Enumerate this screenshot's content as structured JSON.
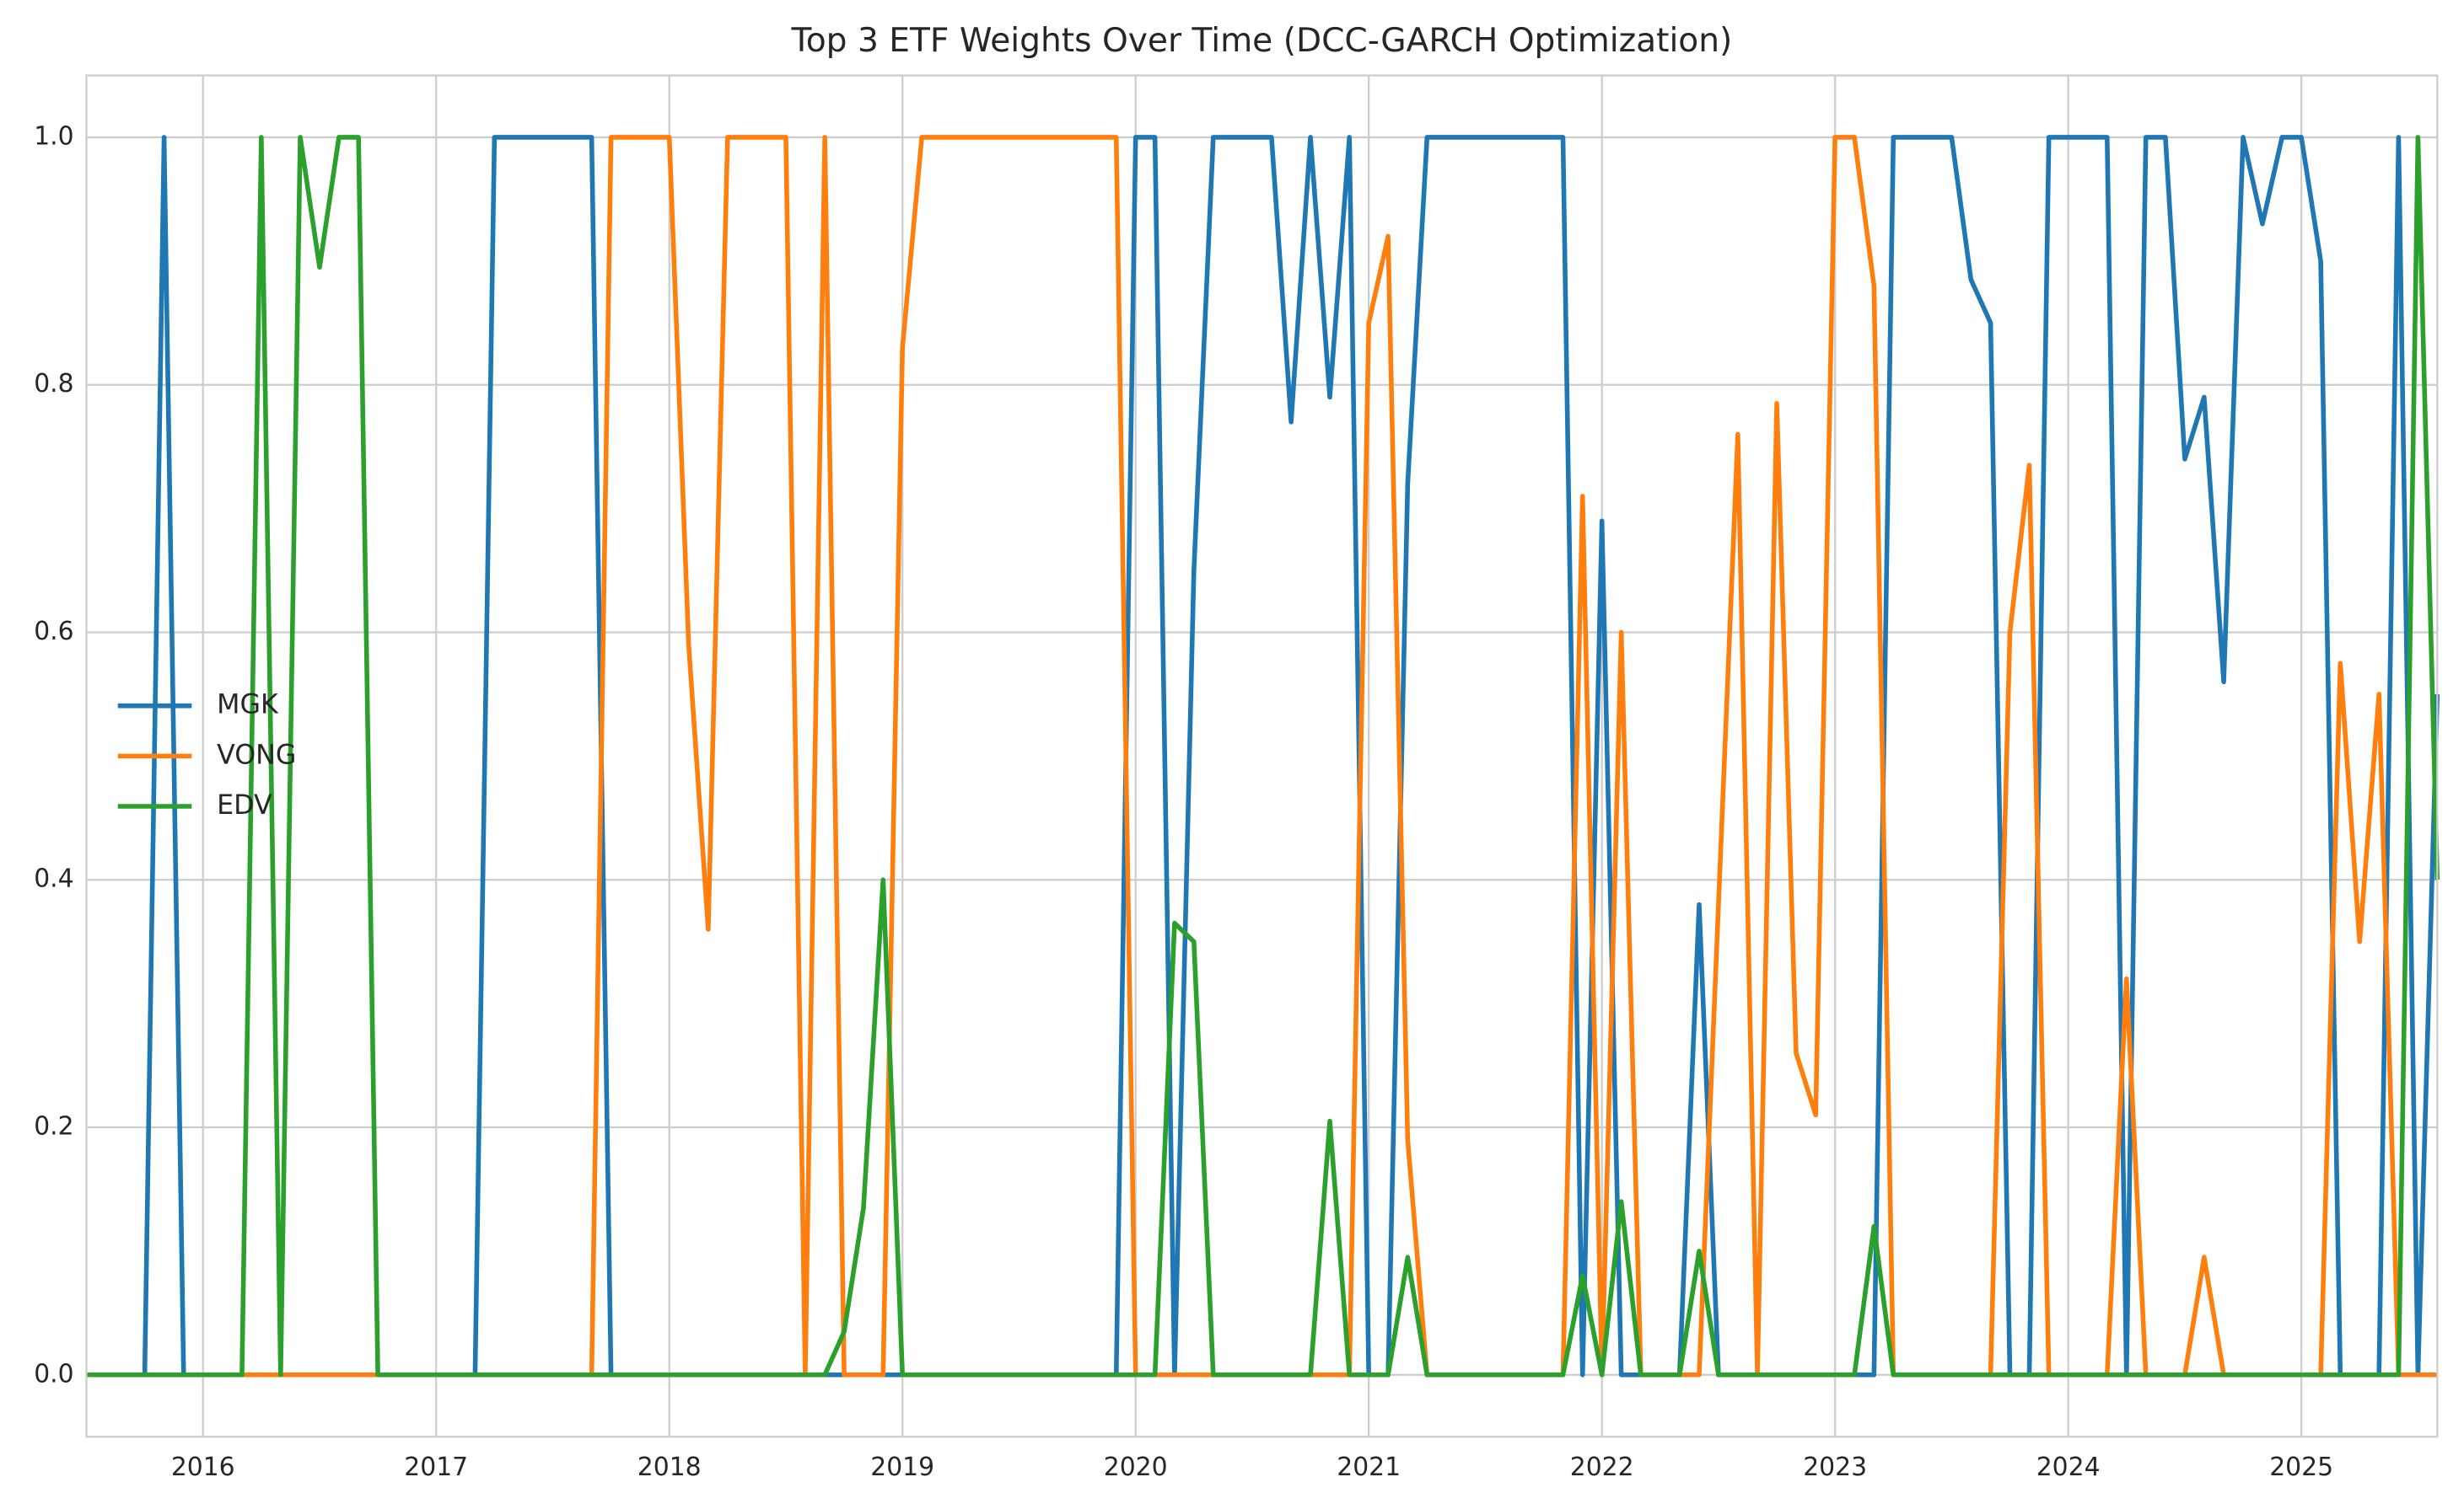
{
  "chart_data": {
    "type": "line",
    "title": "Top 3 ETF Weights Over Time (DCC-GARCH Optimization)",
    "x": [
      2015.5,
      2015.583,
      2015.667,
      2015.75,
      2015.833,
      2015.917,
      2016,
      2016.083,
      2016.167,
      2016.25,
      2016.333,
      2016.417,
      2016.5,
      2016.583,
      2016.667,
      2016.75,
      2016.833,
      2016.917,
      2017,
      2017.083,
      2017.167,
      2017.25,
      2017.333,
      2017.417,
      2017.5,
      2017.583,
      2017.667,
      2017.75,
      2017.833,
      2017.917,
      2018,
      2018.083,
      2018.167,
      2018.25,
      2018.333,
      2018.417,
      2018.5,
      2018.583,
      2018.667,
      2018.75,
      2018.833,
      2018.917,
      2019,
      2019.083,
      2019.167,
      2019.25,
      2019.333,
      2019.417,
      2019.5,
      2019.583,
      2019.667,
      2019.75,
      2019.833,
      2019.917,
      2020,
      2020.083,
      2020.167,
      2020.25,
      2020.333,
      2020.417,
      2020.5,
      2020.583,
      2020.667,
      2020.75,
      2020.833,
      2020.917,
      2021,
      2021.083,
      2021.167,
      2021.25,
      2021.333,
      2021.417,
      2021.5,
      2021.583,
      2021.667,
      2021.75,
      2021.833,
      2021.917,
      2022,
      2022.083,
      2022.167,
      2022.25,
      2022.333,
      2022.417,
      2022.5,
      2022.583,
      2022.667,
      2022.75,
      2022.833,
      2022.917,
      2023,
      2023.083,
      2023.167,
      2023.25,
      2023.333,
      2023.417,
      2023.5,
      2023.583,
      2023.667,
      2023.75,
      2023.833,
      2023.917,
      2024,
      2024.083,
      2024.167,
      2024.25,
      2024.333,
      2024.417,
      2024.5,
      2024.583,
      2024.667,
      2024.75,
      2024.833,
      2024.917,
      2025,
      2025.083,
      2025.167,
      2025.25,
      2025.333,
      2025.417,
      2025.5,
      2025.583
    ],
    "series": [
      {
        "name": "MGK",
        "color": "#1f77b4",
        "values": [
          0,
          0,
          0,
          0,
          1,
          0,
          0,
          0,
          0,
          0,
          0,
          0,
          0,
          0,
          0,
          0,
          0,
          0,
          0,
          0,
          0,
          1,
          1,
          1,
          1,
          1,
          1,
          0,
          0,
          0,
          0,
          0,
          0,
          0,
          0,
          0,
          0,
          0,
          0,
          0,
          0,
          0,
          0,
          0,
          0,
          0,
          0,
          0,
          0,
          0,
          0,
          0,
          0,
          0,
          1,
          1,
          0,
          0.65,
          1,
          1,
          1,
          1,
          0.77,
          1,
          0.79,
          1,
          0,
          0,
          0.72,
          1,
          1,
          1,
          1,
          1,
          1,
          1,
          1,
          0,
          0.69,
          0,
          0,
          0,
          0,
          0.38,
          0,
          0,
          0,
          0,
          0,
          0,
          0,
          0,
          0,
          1,
          1,
          1,
          1,
          0.885,
          0.85,
          0,
          0,
          1,
          1,
          1,
          1,
          0,
          1,
          1,
          0.74,
          0.79,
          0.56,
          1,
          0.93,
          1,
          1,
          0.9,
          0,
          0,
          0,
          1,
          0,
          0.55
        ]
      },
      {
        "name": "VONG",
        "color": "#ff7f0e",
        "values": [
          0,
          0,
          0,
          0,
          0,
          0,
          0,
          0,
          0,
          0,
          0,
          0,
          0,
          0,
          0,
          0,
          0,
          0,
          0,
          0,
          0,
          0,
          0,
          0,
          0,
          0,
          0,
          1,
          1,
          1,
          1,
          0.59,
          0.36,
          1,
          1,
          1,
          1,
          0,
          1,
          0,
          0,
          0,
          0.83,
          1,
          1,
          1,
          1,
          1,
          1,
          1,
          1,
          1,
          1,
          1,
          0,
          0,
          0,
          0,
          0,
          0,
          0,
          0,
          0,
          0,
          0,
          0,
          0.85,
          0.92,
          0.19,
          0,
          0,
          0,
          0,
          0,
          0,
          0,
          0,
          0.71,
          0,
          0.6,
          0,
          0,
          0,
          0,
          0.38,
          0.76,
          0,
          0.785,
          0.26,
          0.21,
          1,
          1,
          0.88,
          0,
          0,
          0,
          0,
          0,
          0,
          0.6,
          0.735,
          0,
          0,
          0,
          0,
          0.32,
          0,
          0,
          0,
          0.095,
          0,
          0,
          0,
          0,
          0,
          0,
          0.575,
          0.35,
          0.55,
          0,
          0,
          0
        ]
      },
      {
        "name": "EDV",
        "color": "#2ca02c",
        "values": [
          0,
          0,
          0,
          0,
          0,
          0,
          0,
          0,
          0,
          1,
          0,
          1,
          0.895,
          1,
          1,
          0,
          0,
          0,
          0,
          0,
          0,
          0,
          0,
          0,
          0,
          0,
          0,
          0,
          0,
          0,
          0,
          0,
          0,
          0,
          0,
          0,
          0,
          0,
          0,
          0.035,
          0.135,
          0.4,
          0,
          0,
          0,
          0,
          0,
          0,
          0,
          0,
          0,
          0,
          0,
          0,
          0,
          0,
          0.365,
          0.35,
          0,
          0,
          0,
          0,
          0,
          0,
          0.205,
          0,
          0,
          0,
          0.095,
          0,
          0,
          0,
          0,
          0,
          0,
          0,
          0,
          0.08,
          0,
          0.14,
          0,
          0,
          0,
          0.1,
          0,
          0,
          0,
          0,
          0,
          0,
          0,
          0,
          0.12,
          0,
          0,
          0,
          0,
          0,
          0,
          0,
          0,
          0,
          0,
          0,
          0,
          0,
          0,
          0,
          0,
          0,
          0,
          0,
          0,
          0,
          0,
          0,
          0,
          0,
          0,
          0,
          1,
          0.4
        ]
      }
    ],
    "xlim": [
      2015.5,
      2025.583
    ],
    "xticks": [
      2016,
      2017,
      2018,
      2019,
      2020,
      2021,
      2022,
      2023,
      2024,
      2025
    ],
    "ylim": [
      -0.05,
      1.05
    ],
    "yticks": [
      {
        "value": 0,
        "label": "0.0"
      },
      0.2,
      0.4,
      0.6,
      0.8,
      {
        "value": 1,
        "label": "1.0"
      }
    ],
    "grid": true,
    "legend": "center left"
  }
}
